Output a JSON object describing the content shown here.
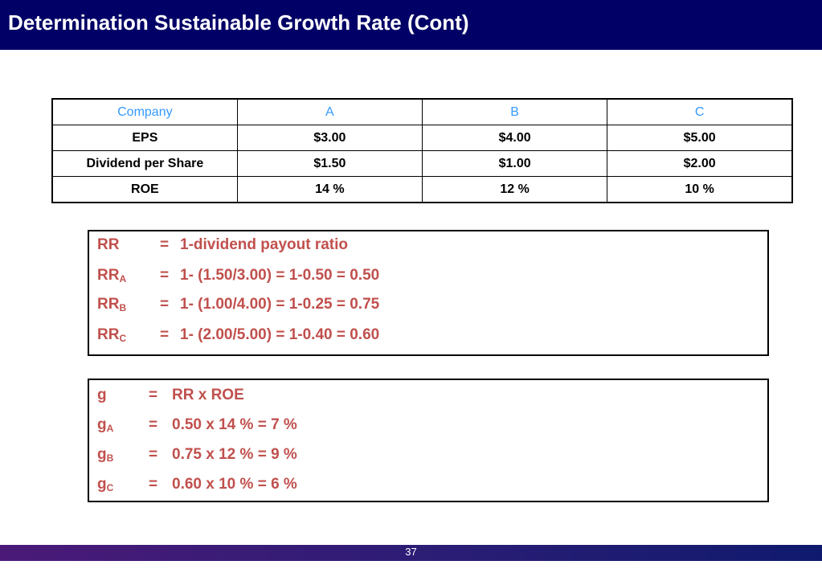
{
  "title": "Determination Sustainable Growth Rate (Cont)",
  "table": {
    "headers": [
      "Company",
      "A",
      "B",
      "C"
    ],
    "rows": [
      [
        "EPS",
        "$3.00",
        "$4.00",
        "$5.00"
      ],
      [
        "Dividend per Share",
        "$1.50",
        "$1.00",
        "$2.00"
      ],
      [
        "ROE",
        "14 %",
        "12 %",
        "10 %"
      ]
    ]
  },
  "rr_box": {
    "lines": [
      {
        "lhs": "RR",
        "sub": "",
        "eq": "=",
        "rhs": "1-dividend payout ratio"
      },
      {
        "lhs": "RR",
        "sub": "A",
        "eq": "=",
        "rhs": "1- (1.50/3.00)  = 1-0.50 = 0.50"
      },
      {
        "lhs": "RR",
        "sub": "B",
        "eq": "=",
        "rhs": "1- (1.00/4.00)  = 1-0.25 = 0.75"
      },
      {
        "lhs": "RR",
        "sub": "C",
        "eq": "=",
        "rhs": "1- (2.00/5.00)  = 1-0.40 = 0.60"
      }
    ]
  },
  "g_box": {
    "lines": [
      {
        "lhs": "g",
        "sub": "",
        "eq": "=",
        "rhs": "RR x ROE"
      },
      {
        "lhs": "g",
        "sub": "A",
        "eq": "=",
        "rhs": "0.50 x 14 % = 7 %"
      },
      {
        "lhs": "g",
        "sub": "B",
        "eq": "=",
        "rhs": "0.75 x 12 % = 9 %"
      },
      {
        "lhs": "g",
        "sub": "C",
        "eq": "=",
        "rhs": "0.60 x 10 % = 6 %"
      }
    ]
  },
  "footer": {
    "page_number": "37"
  },
  "colors": {
    "title_bg": "#000066",
    "header_text": "#3399ff",
    "formula_text": "#c0504d"
  }
}
